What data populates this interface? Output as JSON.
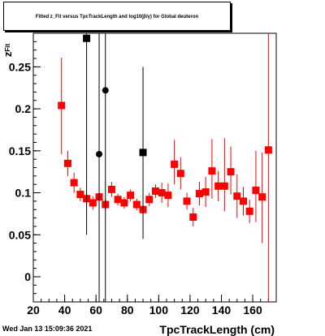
{
  "title_box": {
    "text": "Fitted z_Fit versus TpcTrackLength and log10(β/γ) for Global deuteron"
  },
  "footer": {
    "timestamp": "Wed Jan 13 15:09:36 2021"
  },
  "colors": {
    "red": "#ff0000",
    "black": "#000000",
    "axis": "#000000"
  },
  "chart_data": {
    "type": "scatter",
    "title": "",
    "xlabel": "TpcTrackLength (cm)",
    "ylabel": "z_Fit",
    "xlim": [
      20,
      175
    ],
    "ylim": [
      -0.03,
      0.29
    ],
    "x_ticks": [
      20,
      40,
      60,
      80,
      100,
      120,
      140,
      160
    ],
    "y_ticks": [
      0,
      0.05,
      0.1,
      0.15,
      0.2,
      0.25
    ],
    "y_tick_labels": [
      "0",
      "0.05",
      "0.1",
      "0.15",
      "0.2",
      "0.25"
    ],
    "series": [
      {
        "marker": "square",
        "color": "#ff0000",
        "points": [
          {
            "x": 38,
            "y": 0.204,
            "lo": 0.146,
            "hi": 0.261
          },
          {
            "x": 42,
            "y": 0.135,
            "lo": 0.12,
            "hi": 0.15
          },
          {
            "x": 46,
            "y": 0.112,
            "lo": 0.1,
            "hi": 0.124
          },
          {
            "x": 50,
            "y": 0.098,
            "lo": 0.09,
            "hi": 0.106
          },
          {
            "x": 54,
            "y": 0.093,
            "lo": 0.086,
            "hi": 0.1
          },
          {
            "x": 58,
            "y": 0.088,
            "lo": 0.08,
            "hi": 0.096
          },
          {
            "x": 62,
            "y": 0.095,
            "lo": 0.088,
            "hi": 0.102
          },
          {
            "x": 66,
            "y": 0.086,
            "lo": 0.079,
            "hi": 0.093
          },
          {
            "x": 70,
            "y": 0.104,
            "lo": 0.095,
            "hi": 0.113
          },
          {
            "x": 74,
            "y": 0.092,
            "lo": 0.085,
            "hi": 0.099
          },
          {
            "x": 78,
            "y": 0.088,
            "lo": 0.081,
            "hi": 0.095
          },
          {
            "x": 82,
            "y": 0.097,
            "lo": 0.09,
            "hi": 0.104
          },
          {
            "x": 86,
            "y": 0.086,
            "lo": 0.079,
            "hi": 0.093
          },
          {
            "x": 90,
            "y": 0.08,
            "lo": 0.072,
            "hi": 0.088
          },
          {
            "x": 94,
            "y": 0.092,
            "lo": 0.084,
            "hi": 0.1
          },
          {
            "x": 98,
            "y": 0.102,
            "lo": 0.094,
            "hi": 0.11
          },
          {
            "x": 102,
            "y": 0.1,
            "lo": 0.088,
            "hi": 0.112
          },
          {
            "x": 106,
            "y": 0.097,
            "lo": 0.083,
            "hi": 0.111
          },
          {
            "x": 110,
            "y": 0.134,
            "lo": 0.11,
            "hi": 0.163
          },
          {
            "x": 114,
            "y": 0.123,
            "lo": 0.104,
            "hi": 0.142
          },
          {
            "x": 118,
            "y": 0.09,
            "lo": 0.08,
            "hi": 0.1
          },
          {
            "x": 122,
            "y": 0.071,
            "lo": 0.06,
            "hi": 0.082
          },
          {
            "x": 126,
            "y": 0.099,
            "lo": 0.085,
            "hi": 0.113
          },
          {
            "x": 130,
            "y": 0.101,
            "lo": 0.083,
            "hi": 0.119
          },
          {
            "x": 134,
            "y": 0.126,
            "lo": 0.093,
            "hi": 0.164
          },
          {
            "x": 138,
            "y": 0.108,
            "lo": 0.09,
            "hi": 0.126
          },
          {
            "x": 142,
            "y": 0.108,
            "lo": 0.078,
            "hi": 0.165
          },
          {
            "x": 146,
            "y": 0.125,
            "lo": 0.098,
            "hi": 0.155
          },
          {
            "x": 150,
            "y": 0.096,
            "lo": 0.07,
            "hi": 0.122
          },
          {
            "x": 154,
            "y": 0.09,
            "lo": 0.073,
            "hi": 0.107
          },
          {
            "x": 158,
            "y": 0.078,
            "lo": 0.064,
            "hi": 0.092
          },
          {
            "x": 162,
            "y": 0.103,
            "lo": 0.065,
            "hi": 0.15
          },
          {
            "x": 166,
            "y": 0.095,
            "lo": 0.04,
            "hi": 0.148
          },
          {
            "x": 170,
            "y": 0.151,
            "lo": -0.03,
            "hi": 0.29
          }
        ]
      },
      {
        "marker": "square",
        "color": "#000000",
        "points": [
          {
            "x": 54,
            "y": 0.284,
            "lo": 0.05,
            "hi": 0.29
          },
          {
            "x": 90,
            "y": 0.148,
            "lo": 0.045,
            "hi": 0.25
          }
        ]
      },
      {
        "marker": "circle",
        "color": "#000000",
        "points": [
          {
            "x": 62,
            "y": 0.146,
            "lo": -0.03,
            "hi": 0.29
          },
          {
            "x": 66,
            "y": 0.222,
            "lo": -0.03,
            "hi": 0.29
          }
        ]
      }
    ]
  }
}
